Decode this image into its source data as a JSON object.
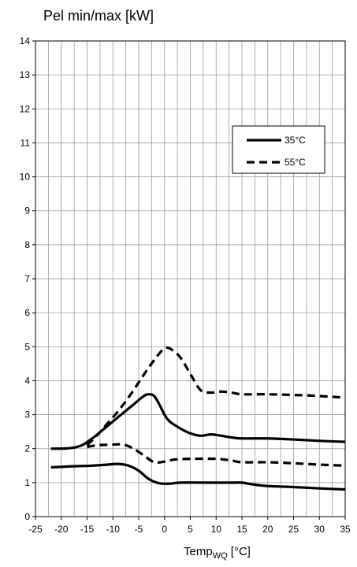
{
  "chart_data": {
    "type": "line",
    "title": "Pel min/max [kW]",
    "xlabel": "Temp",
    "xlabel_subscript": "WQ",
    "xlabel_unit": " [°C]",
    "xlim": [
      -25,
      35
    ],
    "ylim": [
      0,
      14
    ],
    "x_ticks": [
      -25,
      -20,
      -15,
      -10,
      -5,
      0,
      5,
      10,
      15,
      20,
      25,
      30,
      35
    ],
    "y_ticks": [
      0,
      1,
      2,
      3,
      4,
      5,
      6,
      7,
      8,
      9,
      10,
      11,
      12,
      13,
      14
    ],
    "grid": true,
    "legend_position": "top-right",
    "series": [
      {
        "name": "35°C",
        "style": "solid",
        "role": "max",
        "points": [
          [
            -22,
            2.0
          ],
          [
            -20,
            2.0
          ],
          [
            -18,
            2.02
          ],
          [
            -16,
            2.1
          ],
          [
            -14,
            2.3
          ],
          [
            -12,
            2.55
          ],
          [
            -10,
            2.8
          ],
          [
            -8,
            3.05
          ],
          [
            -6,
            3.3
          ],
          [
            -4,
            3.55
          ],
          [
            -3,
            3.6
          ],
          [
            -2,
            3.55
          ],
          [
            -1,
            3.3
          ],
          [
            0,
            3.0
          ],
          [
            1,
            2.8
          ],
          [
            3,
            2.6
          ],
          [
            5,
            2.45
          ],
          [
            7,
            2.38
          ],
          [
            9,
            2.42
          ],
          [
            11,
            2.38
          ],
          [
            13,
            2.33
          ],
          [
            15,
            2.3
          ],
          [
            20,
            2.3
          ],
          [
            25,
            2.27
          ],
          [
            30,
            2.23
          ],
          [
            35,
            2.2
          ]
        ]
      },
      {
        "name": "",
        "style": "solid",
        "role": "min",
        "points": [
          [
            -22,
            1.45
          ],
          [
            -18,
            1.48
          ],
          [
            -14,
            1.5
          ],
          [
            -11,
            1.53
          ],
          [
            -9,
            1.55
          ],
          [
            -7,
            1.5
          ],
          [
            -5,
            1.35
          ],
          [
            -3,
            1.1
          ],
          [
            -1,
            0.98
          ],
          [
            1,
            0.97
          ],
          [
            3,
            1.0
          ],
          [
            8,
            1.0
          ],
          [
            13,
            1.0
          ],
          [
            15,
            1.0
          ],
          [
            17,
            0.95
          ],
          [
            20,
            0.9
          ],
          [
            25,
            0.87
          ],
          [
            30,
            0.83
          ],
          [
            35,
            0.8
          ]
        ]
      },
      {
        "name": "55°C",
        "style": "dashed",
        "role": "max",
        "points": [
          [
            -15,
            2.1
          ],
          [
            -13,
            2.4
          ],
          [
            -11,
            2.75
          ],
          [
            -9,
            3.1
          ],
          [
            -7,
            3.5
          ],
          [
            -5,
            3.95
          ],
          [
            -3,
            4.4
          ],
          [
            -1,
            4.8
          ],
          [
            0,
            4.95
          ],
          [
            1,
            4.95
          ],
          [
            3,
            4.7
          ],
          [
            5,
            4.2
          ],
          [
            7,
            3.72
          ],
          [
            9,
            3.65
          ],
          [
            11,
            3.68
          ],
          [
            13,
            3.65
          ],
          [
            15,
            3.6
          ],
          [
            20,
            3.6
          ],
          [
            25,
            3.58
          ],
          [
            30,
            3.55
          ],
          [
            35,
            3.5
          ]
        ]
      },
      {
        "name": "",
        "style": "dashed",
        "role": "min",
        "points": [
          [
            -15,
            2.05
          ],
          [
            -13,
            2.1
          ],
          [
            -10,
            2.12
          ],
          [
            -8,
            2.12
          ],
          [
            -6,
            2.0
          ],
          [
            -4,
            1.8
          ],
          [
            -2,
            1.6
          ],
          [
            0,
            1.62
          ],
          [
            2,
            1.68
          ],
          [
            5,
            1.7
          ],
          [
            10,
            1.7
          ],
          [
            13,
            1.65
          ],
          [
            15,
            1.6
          ],
          [
            20,
            1.6
          ],
          [
            25,
            1.57
          ],
          [
            30,
            1.53
          ],
          [
            35,
            1.5
          ]
        ]
      }
    ]
  }
}
